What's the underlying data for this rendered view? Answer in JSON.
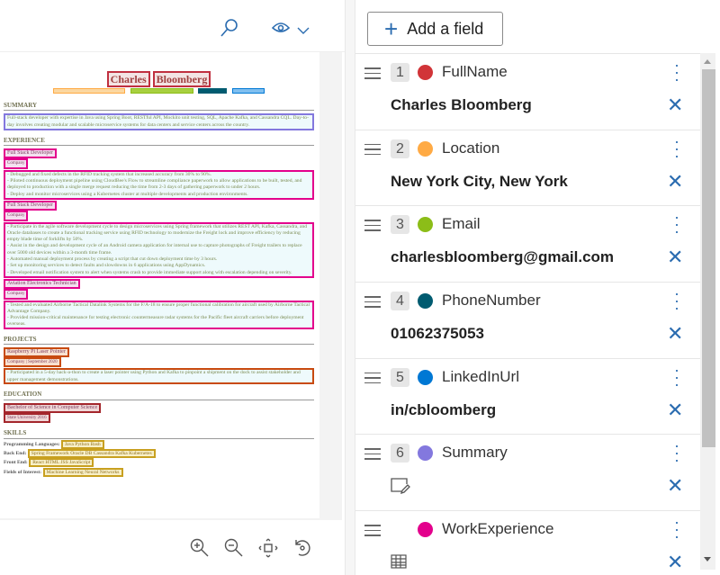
{
  "toolbar": {
    "search_icon": "search-icon",
    "view_icon": "eye-icon"
  },
  "document": {
    "name": [
      "Charles",
      "Bloomberg"
    ],
    "summary_heading": "SUMMARY",
    "summary_text": "Full-stack developer with expertise in Java using Spring Boot, RESTful API, Mockito unit testing, SQL, Apache Kafka, and Cassandra CQL. Day-to-day involves creating modular and scalable microservice systems for data centers and service centers across the country.",
    "experience_heading": "EXPERIENCE",
    "jobs": [
      {
        "title": "Full Stack Developer",
        "company": "Company",
        "text": "- Debugged and fixed defects in the RFID tracking system that increased accuracy from 30% to 90%.\n- Piloted continuous deployment pipeline using CloudBee's Flow to streamline compliance paperwork to allow applications to be built, tested, and deployed to production with a single merge request reducing the time from 2-3 days of gathering paperwork to under 2 hours.\n- Deploy and monitor microservices using a Kubernetes cluster at multiple developments and production environments."
      },
      {
        "title": "Full Stack Developer",
        "company": "Company",
        "text": "- Participate in the agile software development cycle to design microservices using Spring framework that utilizes REST API, Kafka, Cassandra, and Oracle databases to create a functional tracking service using RFID technology to modernize the Freight lock and improve efficiency by reducing empty blade time of forklifts by 50%.\n- Assist in the design and development cycle of an Android camera application for internal use to capture photographs of Freight trailers to replace over 5000 old devices within a 3-month time frame.\n- Automated manual deployment process by creating a script that cut down deployment time by 3 hours.\n- Set up monitoring services to detect faults and slowdowns in 6 applications using AppDynamics.\n- Developed email notification system to alert when systems crash to provide immediate support along with escalation depending on severity."
      },
      {
        "title": "Aviation Electronics Technician",
        "company": "Company",
        "text": "- Tested and evaluated Airborne Tactical Datalink Systems for the F/A-18 to ensure proper functional calibration for aircraft used by Airborne Tactical Advantage Company.\n- Provided mission-critical maintenance for testing electronic countermeasure radar systems for the Pacific fleet aircraft carriers before deployment overseas."
      }
    ],
    "projects_heading": "PROJECTS",
    "project": {
      "title": "Raspberry Pi Laser Pointer",
      "company": "Company | September 2020",
      "text": "- Participated in a 5-day hack-a-thon to create a laser pointer using Python and Kafka to pinpoint a shipment on the dock to assist stakeholder and upper management demonstrations."
    },
    "education_heading": "EDUCATION",
    "education": {
      "degree": "Bachelor of Science in Computer Science",
      "school": "State University 2016"
    },
    "skills_heading": "SKILLS",
    "skills": [
      {
        "label": "Programming Languages:",
        "value": "Java Python Bash"
      },
      {
        "label": "Back End:",
        "value": "Spring Framework Oracle DB Cassandra Kafka Kubernetes"
      },
      {
        "label": "Front End:",
        "value": "React HTML JSS JavaScript"
      },
      {
        "label": "Fields of Interest:",
        "value": "Machine Learning Neural Networks"
      }
    ]
  },
  "bottombar": {
    "icons": [
      "zoom-in-icon",
      "zoom-out-icon",
      "fit-to-page-icon",
      "rotate-icon"
    ]
  },
  "panel": {
    "add_field_label": "Add a field",
    "fields": [
      {
        "num": "1",
        "name": "FullName",
        "color": "#d13438",
        "value": "Charles Bloomberg"
      },
      {
        "num": "2",
        "name": "Location",
        "color": "#ffaa44",
        "value": "New York City, New York"
      },
      {
        "num": "3",
        "name": "Email",
        "color": "#8cbd18",
        "value": "charlesbloomberg@gmail.com"
      },
      {
        "num": "4",
        "name": "PhoneNumber",
        "color": "#005b70",
        "value": "01062375053"
      },
      {
        "num": "5",
        "name": "LinkedInUrl",
        "color": "#0078d4",
        "value": "in/cbloomberg"
      },
      {
        "num": "6",
        "name": "Summary",
        "color": "#8378de",
        "value_icon": "edit-text-icon"
      },
      {
        "num": "",
        "name": "WorkExperience",
        "color": "#e3008c",
        "value_icon": "table-icon"
      }
    ]
  }
}
